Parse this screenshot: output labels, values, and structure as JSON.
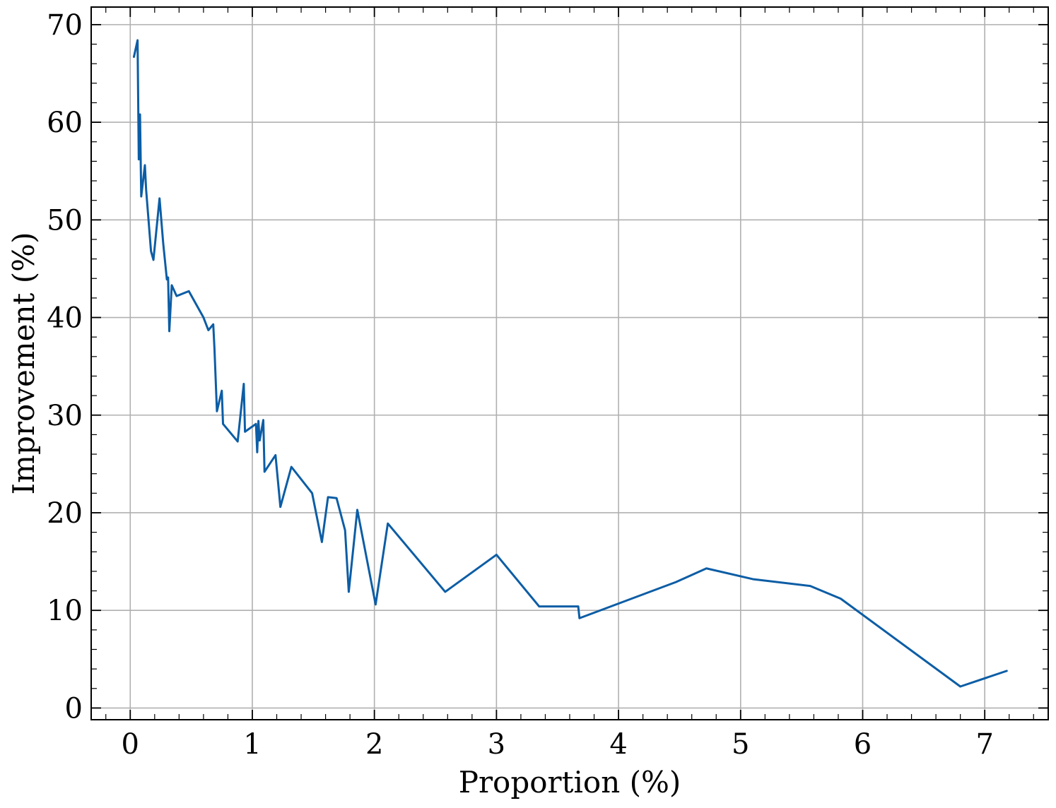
{
  "chart_data": {
    "type": "line",
    "title": "",
    "xlabel": "Proportion (%)",
    "ylabel": "Improvement (%)",
    "xlim": [
      -0.32,
      7.52
    ],
    "ylim": [
      -1.2,
      71.8
    ],
    "xticks": [
      0,
      1,
      2,
      3,
      4,
      5,
      6,
      7
    ],
    "xtick_labels": [
      "0",
      "1",
      "2",
      "3",
      "4",
      "5",
      "6",
      "7"
    ],
    "yticks": [
      0,
      10,
      20,
      30,
      40,
      50,
      60,
      70
    ],
    "ytick_labels": [
      "0",
      "10",
      "20",
      "30",
      "40",
      "50",
      "60",
      "70"
    ],
    "x_minor_step": 0.2,
    "y_minor_step": 2,
    "grid": true,
    "legend": "none",
    "series": [
      {
        "color": "#0c5da5",
        "points": [
          [
            0.03,
            66.7
          ],
          [
            0.06,
            68.4
          ],
          [
            0.07,
            56.2
          ],
          [
            0.08,
            60.8
          ],
          [
            0.09,
            52.4
          ],
          [
            0.12,
            55.6
          ],
          [
            0.13,
            53.1
          ],
          [
            0.17,
            46.8
          ],
          [
            0.19,
            45.9
          ],
          [
            0.24,
            52.2
          ],
          [
            0.27,
            47.6
          ],
          [
            0.3,
            43.9
          ],
          [
            0.31,
            44.1
          ],
          [
            0.32,
            38.6
          ],
          [
            0.34,
            43.3
          ],
          [
            0.38,
            42.2
          ],
          [
            0.48,
            42.7
          ],
          [
            0.6,
            40.0
          ],
          [
            0.64,
            38.7
          ],
          [
            0.68,
            39.3
          ],
          [
            0.69,
            36.8
          ],
          [
            0.71,
            30.4
          ],
          [
            0.75,
            32.5
          ],
          [
            0.76,
            29.1
          ],
          [
            0.88,
            27.3
          ],
          [
            0.93,
            33.2
          ],
          [
            0.94,
            28.3
          ],
          [
            1.03,
            29.1
          ],
          [
            1.04,
            26.2
          ],
          [
            1.05,
            29.4
          ],
          [
            1.06,
            27.4
          ],
          [
            1.09,
            29.5
          ],
          [
            1.1,
            24.2
          ],
          [
            1.19,
            25.9
          ],
          [
            1.23,
            20.6
          ],
          [
            1.32,
            24.7
          ],
          [
            1.49,
            22.0
          ],
          [
            1.57,
            17.0
          ],
          [
            1.62,
            21.6
          ],
          [
            1.69,
            21.5
          ],
          [
            1.76,
            18.2
          ],
          [
            1.79,
            11.9
          ],
          [
            1.86,
            20.3
          ],
          [
            2.01,
            10.6
          ],
          [
            2.11,
            18.9
          ],
          [
            2.58,
            11.9
          ],
          [
            3.0,
            15.7
          ],
          [
            3.35,
            10.4
          ],
          [
            3.67,
            10.4
          ],
          [
            3.68,
            9.2
          ],
          [
            4.47,
            12.9
          ],
          [
            4.72,
            14.3
          ],
          [
            5.1,
            13.2
          ],
          [
            5.57,
            12.5
          ],
          [
            5.82,
            11.2
          ],
          [
            6.8,
            2.2
          ],
          [
            7.18,
            3.8
          ]
        ]
      }
    ]
  }
}
